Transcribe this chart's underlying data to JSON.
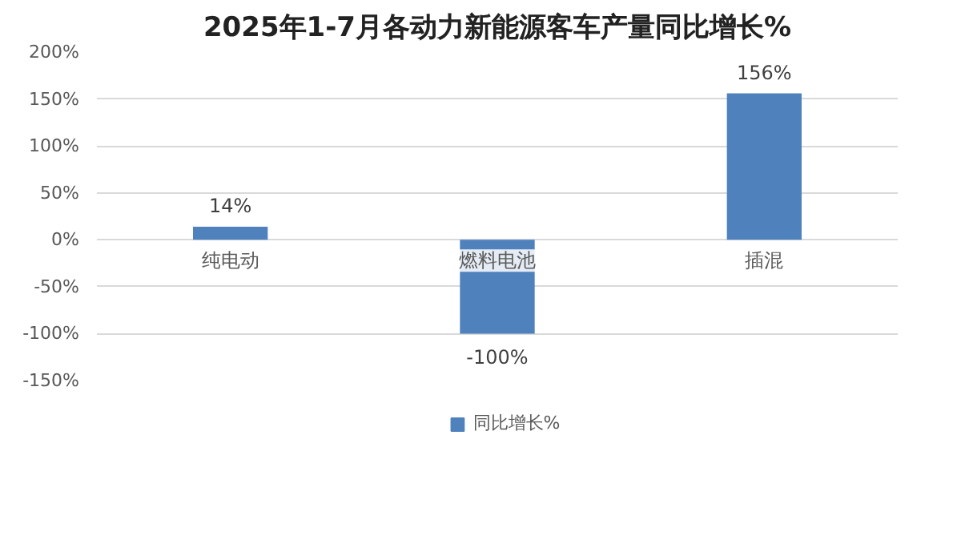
{
  "chart_data": {
    "type": "bar",
    "title": "2025年1-7月各动力新能源客车产量同比增长%",
    "categories": [
      "纯电动",
      "燃料电池",
      "插混"
    ],
    "series": [
      {
        "name": "同比增长%",
        "color": "#4f81bd",
        "values": [
          14,
          -100,
          156
        ]
      }
    ],
    "ylim": [
      -150,
      200
    ],
    "yticks": [
      {
        "value": -150,
        "label": "-150%"
      },
      {
        "value": -100,
        "label": "-100%"
      },
      {
        "value": -50,
        "label": "-50%"
      },
      {
        "value": 0,
        "label": "0%"
      },
      {
        "value": 50,
        "label": "50%"
      },
      {
        "value": 100,
        "label": "100%"
      },
      {
        "value": 150,
        "label": "150%"
      },
      {
        "value": 200,
        "label": "200%"
      }
    ],
    "value_labels": [
      "14%",
      "-100%",
      "156%"
    ],
    "grid": "y",
    "legend": "bottom"
  }
}
